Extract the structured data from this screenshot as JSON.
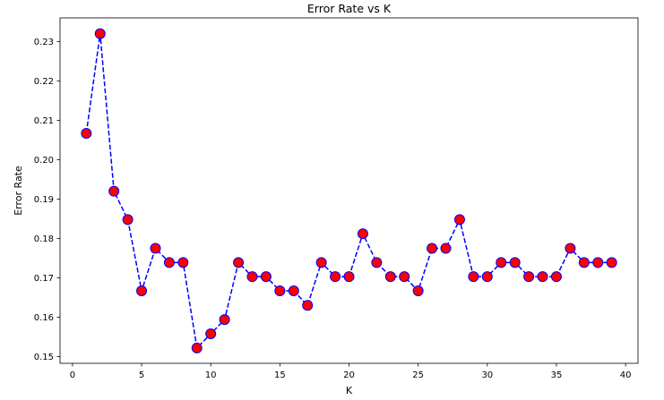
{
  "chart_data": {
    "type": "line",
    "title": "Error Rate vs K",
    "xlabel": "K",
    "ylabel": "Error Rate",
    "x": [
      1,
      2,
      3,
      4,
      5,
      6,
      7,
      8,
      9,
      10,
      11,
      12,
      13,
      14,
      15,
      16,
      17,
      18,
      19,
      20,
      21,
      22,
      23,
      24,
      25,
      26,
      27,
      28,
      29,
      30,
      31,
      32,
      33,
      34,
      35,
      36,
      37,
      38,
      39
    ],
    "series": [
      {
        "values": [
          0.2067,
          0.232,
          0.192,
          0.1848,
          0.1667,
          0.1775,
          0.1739,
          0.1739,
          0.1522,
          0.1558,
          0.1594,
          0.1739,
          0.1703,
          0.1703,
          0.1667,
          0.1667,
          0.163,
          0.1739,
          0.1703,
          0.1703,
          0.1812,
          0.1739,
          0.1703,
          0.1703,
          0.1667,
          0.1775,
          0.1775,
          0.1848,
          0.1703,
          0.1703,
          0.1739,
          0.1739,
          0.1703,
          0.1703,
          0.1703,
          0.1775,
          0.1739,
          0.1739,
          0.1739
        ],
        "line_style": "dashed",
        "line_color": "#0000ff",
        "marker": "circle",
        "marker_face_color": "#ff0000",
        "marker_edge_color": "#0000ff"
      }
    ],
    "xlim": [
      -0.9,
      40.9
    ],
    "ylim": [
      0.1483,
      0.236
    ],
    "xticks": [
      0,
      5,
      10,
      15,
      20,
      25,
      30,
      35,
      40
    ],
    "xtick_labels": [
      "0",
      "5",
      "10",
      "15",
      "20",
      "25",
      "30",
      "35",
      "40"
    ],
    "yticks": [
      0.15,
      0.16,
      0.17,
      0.18,
      0.19,
      0.2,
      0.21,
      0.22,
      0.23
    ],
    "ytick_labels": [
      "0.15",
      "0.16",
      "0.17",
      "0.18",
      "0.19",
      "0.20",
      "0.21",
      "0.22",
      "0.23"
    ],
    "grid": false,
    "legend": "none"
  }
}
